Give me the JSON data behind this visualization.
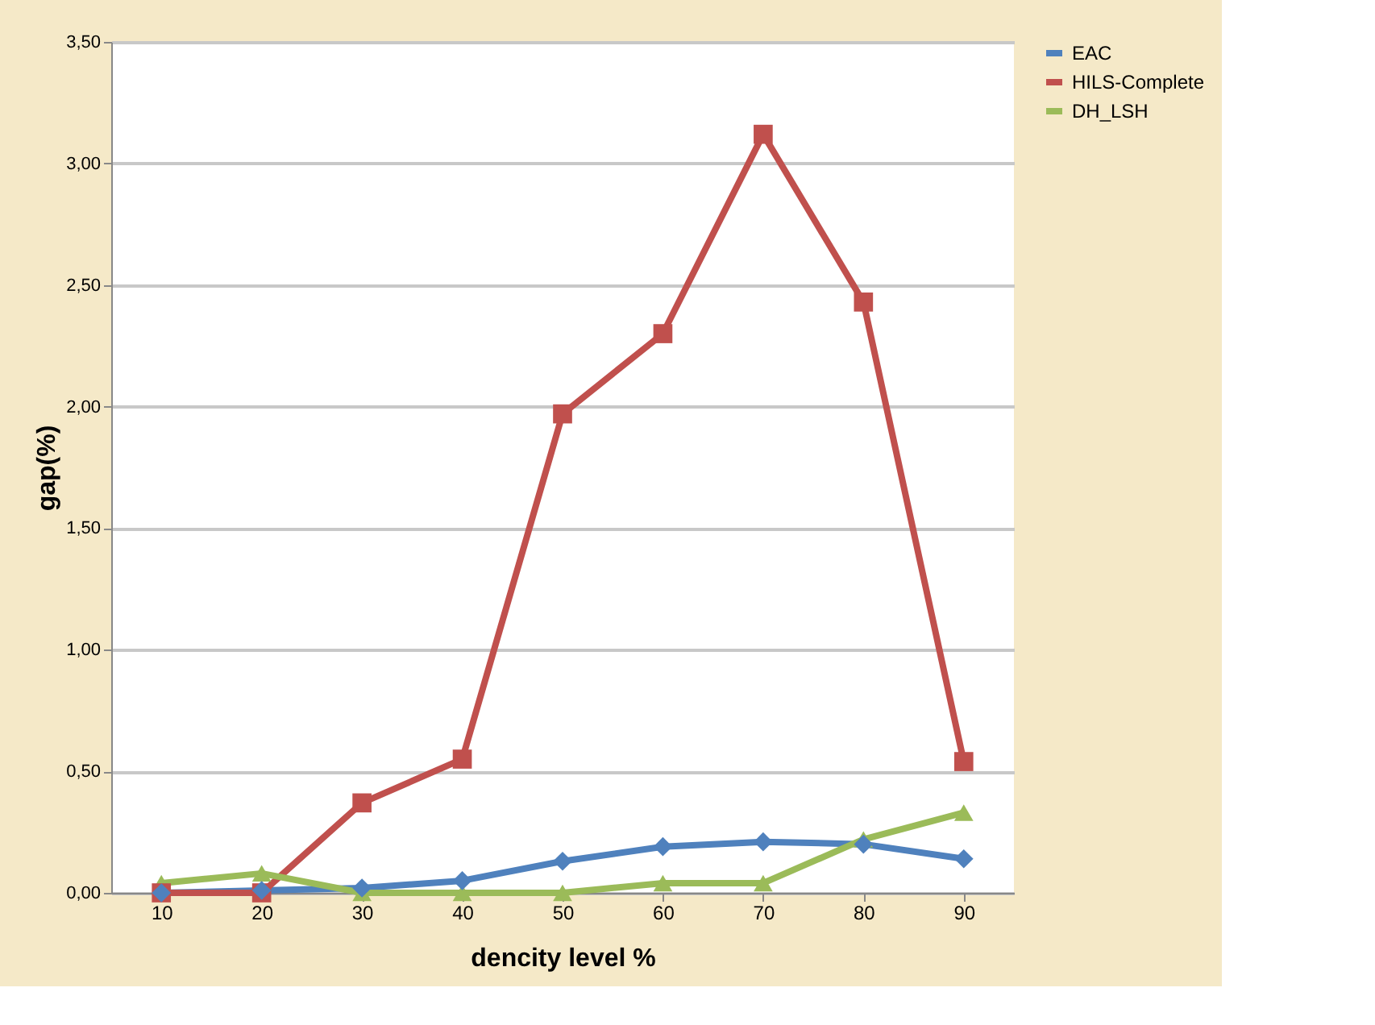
{
  "chart_data": {
    "type": "line",
    "xlabel": "dencity level %",
    "ylabel": "gap(%)",
    "categories": [
      "10",
      "20",
      "30",
      "40",
      "50",
      "60",
      "70",
      "80",
      "90"
    ],
    "series": [
      {
        "name": "EAC",
        "color": "#4f81bd",
        "marker": "diamond",
        "values": [
          0.0,
          0.01,
          0.02,
          0.05,
          0.13,
          0.19,
          0.21,
          0.2,
          0.14
        ]
      },
      {
        "name": "HILS-Complete",
        "color": "#c0504d",
        "marker": "square",
        "values": [
          0.0,
          0.0,
          0.37,
          0.55,
          1.97,
          2.3,
          3.12,
          2.43,
          0.54
        ]
      },
      {
        "name": "DH_LSH",
        "color": "#9bbb59",
        "marker": "triangle",
        "values": [
          0.04,
          0.08,
          0.0,
          0.0,
          0.0,
          0.04,
          0.04,
          0.22,
          0.33
        ]
      }
    ],
    "ylim": [
      0,
      3.5
    ],
    "yticks": [
      {
        "value": 0,
        "label": "0,00"
      },
      {
        "value": 0.5,
        "label": "0,50"
      },
      {
        "value": 1,
        "label": "1,00"
      },
      {
        "value": 1.5,
        "label": "1,50"
      },
      {
        "value": 2,
        "label": "2,00"
      },
      {
        "value": 2.5,
        "label": "2,50"
      },
      {
        "value": 3,
        "label": "3,00"
      },
      {
        "value": 3.5,
        "label": "3,50"
      }
    ],
    "grid": "y",
    "legend": "right",
    "line_style": "solid"
  }
}
